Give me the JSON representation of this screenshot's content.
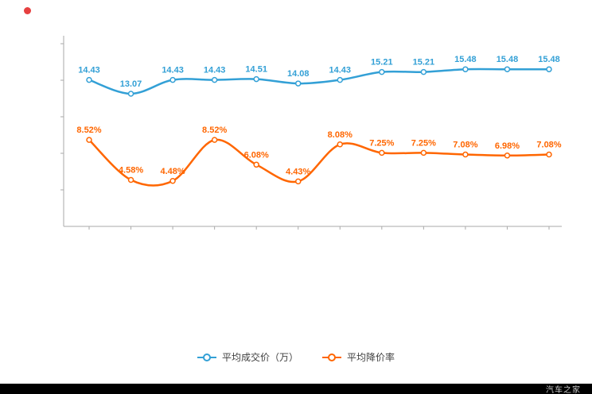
{
  "page": {
    "background": "#ffffff"
  },
  "decorations": {
    "red_dot_color": "#e64040"
  },
  "footer": {
    "watermark": "汽车之家",
    "bar_color": "#000000",
    "text_color": "#c9c9c9"
  },
  "chart_data": {
    "type": "line",
    "title": "",
    "xlabel": "",
    "ylabel": "",
    "ylim": [
      0,
      18
    ],
    "grid": false,
    "legend_position": "bottom",
    "axis_color": "#aaaaaa",
    "x": [
      1,
      2,
      3,
      4,
      5,
      6,
      7,
      8,
      9,
      10,
      11,
      12
    ],
    "series": [
      {
        "name": "平均成交价（万）",
        "color": "#33a0d6",
        "marker": "circle-ring",
        "values": [
          14.43,
          13.07,
          14.43,
          14.43,
          14.51,
          14.08,
          14.43,
          15.21,
          15.21,
          15.48,
          15.48,
          15.48
        ],
        "labels": [
          "14.43",
          "13.07",
          "14.43",
          "14.43",
          "14.51",
          "14.08",
          "14.43",
          "15.21",
          "15.21",
          "15.48",
          "15.48",
          "15.48"
        ]
      },
      {
        "name": "平均降价率",
        "color": "#ff6600",
        "marker": "circle-ring",
        "values": [
          8.52,
          4.58,
          4.48,
          8.52,
          6.08,
          4.43,
          8.08,
          7.25,
          7.25,
          7.08,
          6.98,
          7.08
        ],
        "labels": [
          "8.52%",
          "4.58%",
          "4.48%",
          "8.52%",
          "6.08%",
          "4.43%",
          "8.08%",
          "7.25%",
          "7.25%",
          "7.08%",
          "6.98%",
          "7.08%"
        ]
      }
    ]
  }
}
